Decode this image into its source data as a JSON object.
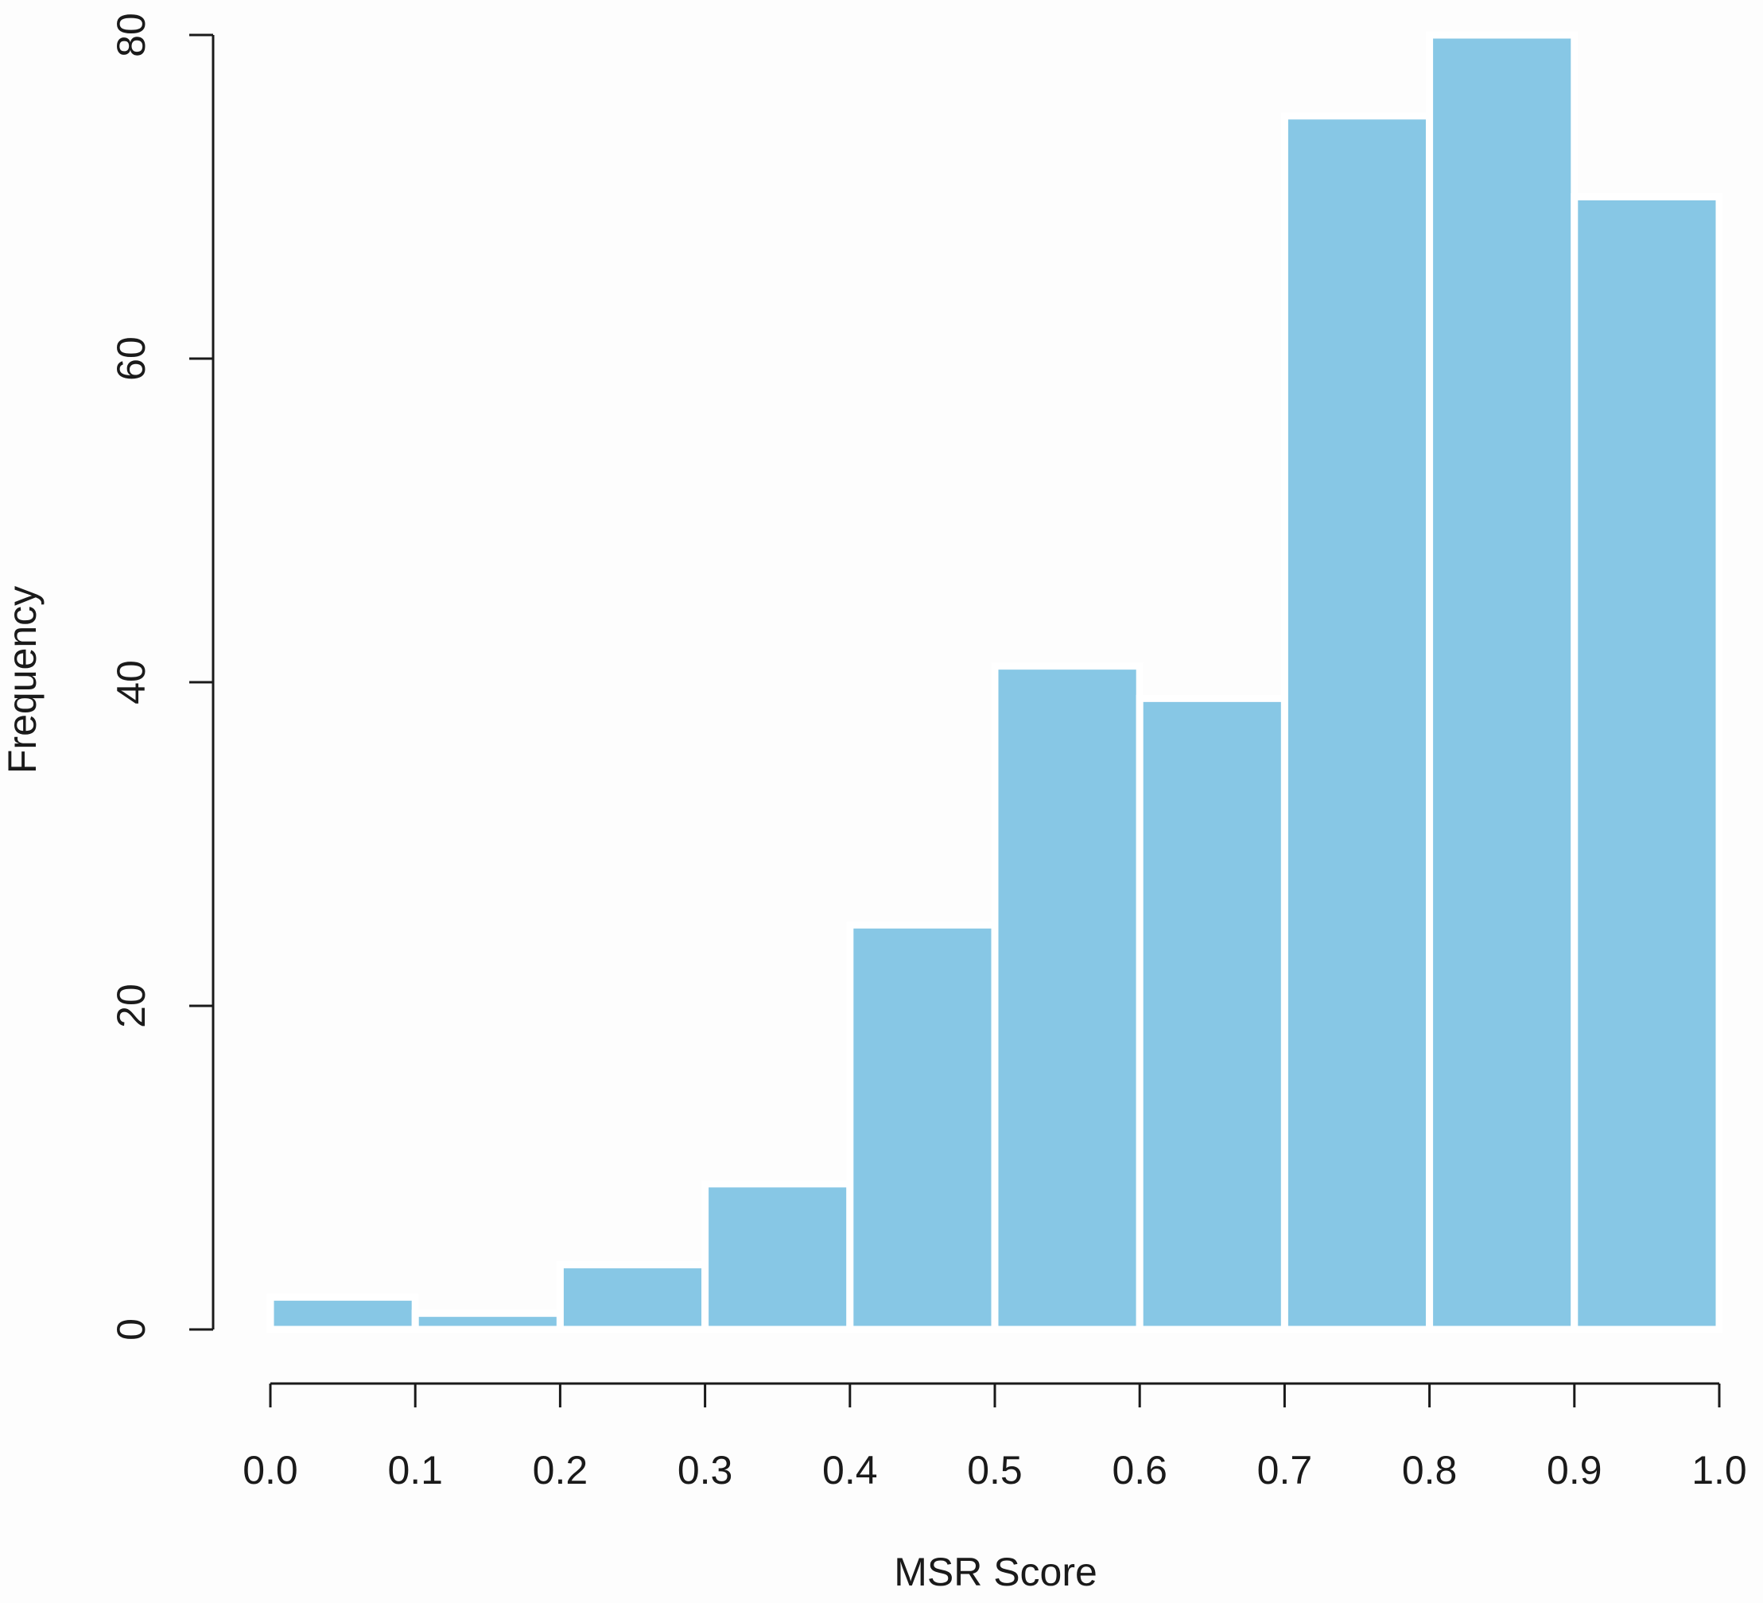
{
  "chart_data": {
    "type": "histogram",
    "title": "",
    "xlabel": "MSR Score",
    "ylabel": "Frequency",
    "bin_edges": [
      0.0,
      0.1,
      0.2,
      0.3,
      0.4,
      0.5,
      0.6,
      0.7,
      0.8,
      0.9,
      1.0
    ],
    "values": [
      2,
      1,
      4,
      9,
      25,
      41,
      39,
      75,
      80,
      70
    ],
    "xlim": [
      0.0,
      1.0
    ],
    "ylim": [
      0,
      80
    ],
    "x_ticks": [
      "0.0",
      "0.1",
      "0.2",
      "0.3",
      "0.4",
      "0.5",
      "0.6",
      "0.7",
      "0.8",
      "0.9",
      "1.0"
    ],
    "y_ticks": [
      "0",
      "20",
      "40",
      "60",
      "80"
    ],
    "grid": false,
    "legend": "none",
    "bar_color": "#87c7e5",
    "axis_color": "#1a1a1a"
  }
}
